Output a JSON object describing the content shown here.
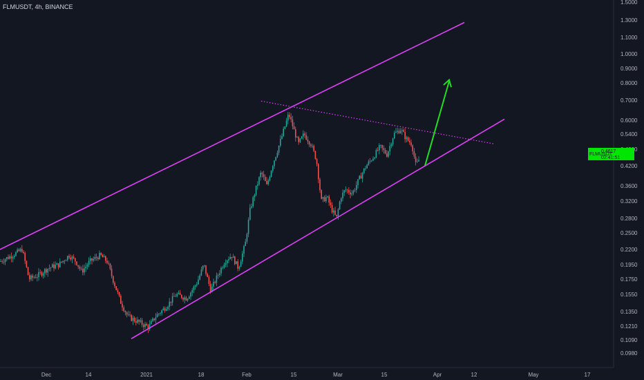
{
  "chart_data": {
    "type": "candlestick",
    "title": "FLMUSDT, 4h, BINANCE",
    "scale": "log",
    "y_ticks": [
      "1.5000",
      "1.3000",
      "1.1000",
      "1.0000",
      "0.9000",
      "0.8000",
      "0.7000",
      "0.6000",
      "0.5400",
      "0.4800",
      "0.4200",
      "0.3600",
      "0.3200",
      "0.2800",
      "0.2500",
      "0.2200",
      "0.1950",
      "0.1750",
      "0.1550",
      "0.1350",
      "0.1210",
      "0.1090",
      "0.0980"
    ],
    "x_ticks": [
      "Dec",
      "14",
      "2021",
      "18",
      "Feb",
      "15",
      "Mar",
      "15",
      "Apr",
      "12",
      "May",
      "17"
    ],
    "last_price": {
      "symbol": "FLMUSDT",
      "value": "0.4617",
      "countdown": "02:41:51",
      "color": "#00e600"
    },
    "path_points": [
      [
        0,
        0.2
      ],
      [
        18,
        0.21
      ],
      [
        32,
        0.22
      ],
      [
        42,
        0.175
      ],
      [
        55,
        0.18
      ],
      [
        70,
        0.19
      ],
      [
        85,
        0.195
      ],
      [
        100,
        0.21
      ],
      [
        110,
        0.2
      ],
      [
        118,
        0.185
      ],
      [
        130,
        0.2
      ],
      [
        145,
        0.21
      ],
      [
        155,
        0.2
      ],
      [
        165,
        0.17
      ],
      [
        175,
        0.145
      ],
      [
        185,
        0.13
      ],
      [
        200,
        0.125
      ],
      [
        215,
        0.12
      ],
      [
        225,
        0.13
      ],
      [
        240,
        0.14
      ],
      [
        255,
        0.155
      ],
      [
        270,
        0.15
      ],
      [
        285,
        0.17
      ],
      [
        295,
        0.195
      ],
      [
        305,
        0.16
      ],
      [
        315,
        0.18
      ],
      [
        325,
        0.2
      ],
      [
        335,
        0.21
      ],
      [
        345,
        0.19
      ],
      [
        355,
        0.23
      ],
      [
        362,
        0.3
      ],
      [
        370,
        0.35
      ],
      [
        378,
        0.4
      ],
      [
        386,
        0.36
      ],
      [
        394,
        0.42
      ],
      [
        402,
        0.48
      ],
      [
        410,
        0.55
      ],
      [
        418,
        0.63
      ],
      [
        425,
        0.56
      ],
      [
        432,
        0.5
      ],
      [
        440,
        0.54
      ],
      [
        450,
        0.5
      ],
      [
        458,
        0.44
      ],
      [
        465,
        0.32
      ],
      [
        473,
        0.33
      ],
      [
        480,
        0.3
      ],
      [
        487,
        0.28
      ],
      [
        493,
        0.33
      ],
      [
        500,
        0.35
      ],
      [
        510,
        0.34
      ],
      [
        520,
        0.38
      ],
      [
        530,
        0.42
      ],
      [
        540,
        0.45
      ],
      [
        550,
        0.49
      ],
      [
        560,
        0.46
      ],
      [
        570,
        0.54
      ],
      [
        580,
        0.56
      ],
      [
        588,
        0.52
      ],
      [
        596,
        0.5
      ],
      [
        602,
        0.42
      ],
      [
        608,
        0.45
      ]
    ],
    "trendlines": [
      {
        "from": [
          0,
          0.22
        ],
        "to": [
          672,
          1.27
        ],
        "style": "solid",
        "color": "#e040fb"
      },
      {
        "from": [
          190,
          0.11
        ],
        "to": [
          730,
          0.605
        ],
        "style": "solid",
        "color": "#e040fb"
      },
      {
        "from": [
          378,
          0.695
        ],
        "to": [
          716,
          0.5
        ],
        "style": "dotted",
        "color": "#e040fb"
      }
    ],
    "arrow": {
      "from": [
        615,
        0.42
      ],
      "to": [
        650,
        0.82
      ],
      "color": "#22dd22"
    },
    "colors": {
      "up": "#26a69a",
      "down": "#ef5350",
      "background": "#131722"
    }
  }
}
